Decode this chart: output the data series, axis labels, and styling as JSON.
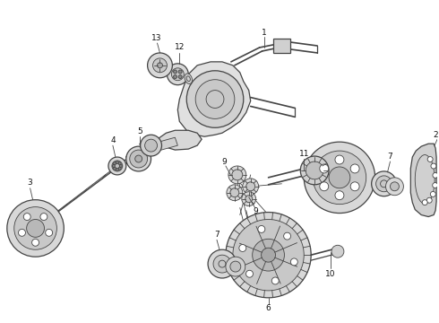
{
  "bg_color": "#ffffff",
  "line_color": "#444444",
  "label_color": "#111111",
  "figsize": [
    4.9,
    3.6
  ],
  "dpi": 100,
  "lw_thin": 0.6,
  "lw_med": 0.9,
  "lw_thick": 1.2
}
